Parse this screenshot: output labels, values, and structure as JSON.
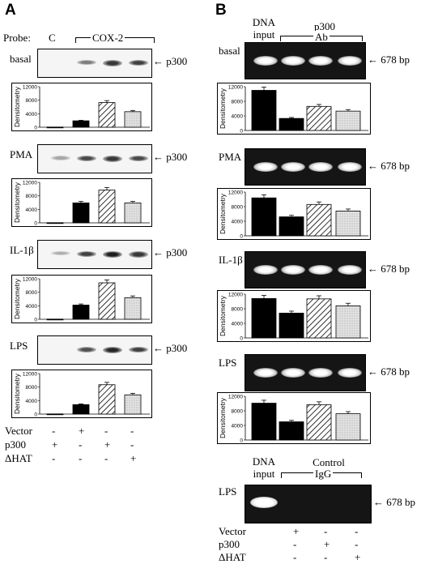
{
  "panels": {
    "a": {
      "letter": "A",
      "probe_label": "Probe:",
      "probe_c": "C",
      "probe_cox2": "COX-2",
      "rows": [
        {
          "label": "basal",
          "arrow_label": "p300",
          "band_intensities": [
            0,
            0.45,
            0.85,
            0.8
          ]
        },
        {
          "label": "PMA",
          "arrow_label": "p300",
          "band_intensities": [
            0.2,
            0.75,
            0.85,
            0.75
          ]
        },
        {
          "label": "IL-1β",
          "arrow_label": "p300",
          "band_intensities": [
            0.15,
            0.8,
            1.0,
            0.85
          ]
        },
        {
          "label": "LPS",
          "arrow_label": "p300",
          "band_intensities": [
            0,
            0.7,
            0.95,
            0.8
          ]
        }
      ],
      "treatments": [
        {
          "label": "Vector",
          "values": [
            "-",
            "+",
            "-",
            "-"
          ]
        },
        {
          "label": "p300",
          "values": [
            "+",
            "-",
            "+",
            "-"
          ]
        },
        {
          "label": "ΔHAT",
          "values": [
            "-",
            "-",
            "-",
            "+"
          ]
        }
      ]
    },
    "b": {
      "letter": "B",
      "dna_input_line1": "DNA",
      "dna_input_line2": "input",
      "ab_line1": "p300",
      "ab_line2": "Ab",
      "band_size": "678 bp",
      "rows": [
        {
          "label": "basal"
        },
        {
          "label": "PMA"
        },
        {
          "label": "IL-1β"
        },
        {
          "label": "LPS"
        }
      ],
      "control": {
        "label": "LPS",
        "dna_input_line1": "DNA",
        "dna_input_line2": "input",
        "ctrl_line1": "Control",
        "ctrl_line2": "IgG",
        "band_size": "678 bp"
      },
      "treatments": [
        {
          "label": "Vector",
          "values": [
            "+",
            "-",
            "-"
          ]
        },
        {
          "label": "p300",
          "values": [
            "-",
            "+",
            "-"
          ]
        },
        {
          "label": "ΔHAT",
          "values": [
            "-",
            "-",
            "+"
          ]
        }
      ]
    }
  },
  "chart_data": [
    {
      "type": "bar",
      "panel": "A",
      "row": "basal",
      "ylabel": "Densitometry",
      "ylim": [
        0,
        12000
      ],
      "yticks": [
        0,
        4000,
        8000,
        12000
      ],
      "values": [
        50,
        1900,
        7300,
        4600
      ]
    },
    {
      "type": "bar",
      "panel": "A",
      "row": "PMA",
      "ylabel": "Densitometry",
      "ylim": [
        0,
        12000
      ],
      "yticks": [
        0,
        4000,
        8000,
        12000
      ],
      "values": [
        50,
        5900,
        9700,
        5900
      ]
    },
    {
      "type": "bar",
      "panel": "A",
      "row": "IL-1β",
      "ylabel": "Densitometry",
      "ylim": [
        0,
        12000
      ],
      "yticks": [
        0,
        4000,
        8000,
        12000
      ],
      "values": [
        50,
        4200,
        10800,
        6400
      ]
    },
    {
      "type": "bar",
      "panel": "A",
      "row": "LPS",
      "ylabel": "Densitometry",
      "ylim": [
        0,
        12000
      ],
      "yticks": [
        0,
        4000,
        8000,
        12000
      ],
      "values": [
        50,
        2800,
        8700,
        5700
      ]
    },
    {
      "type": "bar",
      "panel": "B",
      "row": "basal",
      "ylabel": "Densitometry",
      "ylim": [
        0,
        12000
      ],
      "yticks": [
        0,
        4000,
        8000,
        12000
      ],
      "values": [
        11000,
        3300,
        6600,
        5300
      ]
    },
    {
      "type": "bar",
      "panel": "B",
      "row": "PMA",
      "ylabel": "Densitometry",
      "ylim": [
        0,
        12000
      ],
      "yticks": [
        0,
        4000,
        8000,
        12000
      ],
      "values": [
        10400,
        5200,
        8600,
        6800
      ]
    },
    {
      "type": "bar",
      "panel": "B",
      "row": "IL-1β",
      "ylabel": "Densitometry",
      "ylim": [
        0,
        12000
      ],
      "yticks": [
        0,
        4000,
        8000,
        12000
      ],
      "values": [
        10800,
        6800,
        10700,
        8800
      ]
    },
    {
      "type": "bar",
      "panel": "B",
      "row": "LPS",
      "ylabel": "Densitometry",
      "ylim": [
        0,
        12000
      ],
      "yticks": [
        0,
        4000,
        8000,
        12000
      ],
      "values": [
        10100,
        5000,
        9700,
        7200
      ]
    }
  ],
  "style": {
    "bar_colors": [
      "#000000",
      "#000000",
      "hatched",
      "#dcdcdc"
    ],
    "gel_bg": "#151515",
    "band_color": "#ffffff"
  }
}
